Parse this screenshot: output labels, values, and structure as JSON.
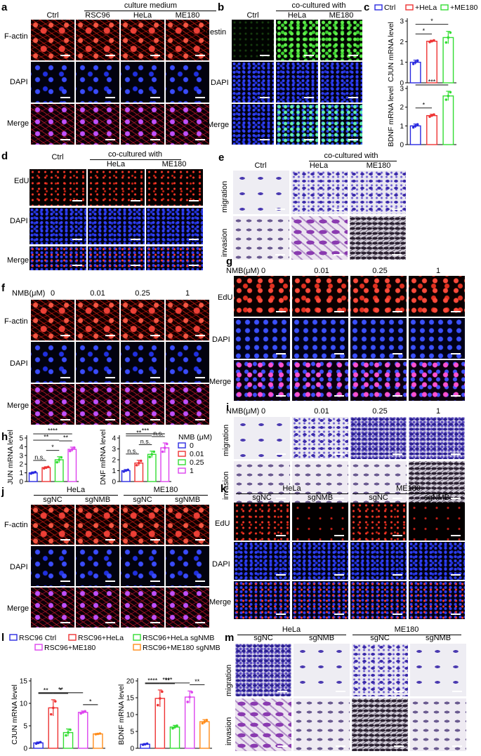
{
  "panels": {
    "a": "a",
    "b": "b",
    "c": "c",
    "d": "d",
    "e": "e",
    "f": "f",
    "g": "g",
    "h": "h",
    "i": "i",
    "j": "j",
    "k": "k",
    "l": "l",
    "m": "m"
  },
  "a": {
    "header": "culture medium",
    "cols": [
      "Ctrl",
      "RSC96",
      "HeLa",
      "ME180"
    ],
    "rows": [
      "F-actin",
      "DAPI",
      "Merge"
    ]
  },
  "b": {
    "header": "co-cultured with",
    "cols": [
      "Ctrl",
      "HeLa",
      "ME180"
    ],
    "rows": [
      "Nestin",
      "DAPI",
      "Merge"
    ]
  },
  "d": {
    "header": "co-cultured with",
    "cols": [
      "Ctrl",
      "HeLa",
      "ME180"
    ],
    "rows": [
      "EdU",
      "DAPI",
      "Merge"
    ]
  },
  "e": {
    "header": "co-cultured with",
    "cols": [
      "Ctrl",
      "HeLa",
      "ME180"
    ],
    "rows": [
      "migration",
      "invasion"
    ]
  },
  "f": {
    "nmb_label": "NMB(μM)",
    "cols": [
      "0",
      "0.01",
      "0.25",
      "1"
    ],
    "rows": [
      "F-actin",
      "DAPI",
      "Merge"
    ]
  },
  "g": {
    "nmb_label": "NMB(μM)",
    "cols": [
      "0",
      "0.01",
      "0.25",
      "1"
    ],
    "rows": [
      "EdU",
      "DAPI",
      "Merge"
    ]
  },
  "i": {
    "nmb_label": "NMB(μM)",
    "cols": [
      "0",
      "0.01",
      "0.25",
      "1"
    ],
    "rows": [
      "migration",
      "invasion"
    ]
  },
  "j": {
    "groups": [
      "HeLa",
      "ME180"
    ],
    "cols": [
      "sgNC",
      "sgNMB",
      "sgNC",
      "sgNMB"
    ],
    "rows": [
      "F-actin",
      "DAPI",
      "Merge"
    ]
  },
  "k": {
    "groups": [
      "HeLa",
      "ME180"
    ],
    "cols": [
      "sgNC",
      "sgNMB",
      "sgNC",
      "sgNMB"
    ],
    "rows": [
      "EdU",
      "DAPI",
      "Merge"
    ]
  },
  "m": {
    "groups": [
      "HeLa",
      "ME180"
    ],
    "cols": [
      "sgNC",
      "sgNMB",
      "sgNC",
      "sgNMB"
    ],
    "rows": [
      "migration",
      "invasion"
    ]
  },
  "colors": {
    "blue": "#2a2ae0",
    "red": "#ee3333",
    "green": "#33dd33",
    "magenta": "#dd44ee",
    "orange": "#ff8c1a"
  },
  "chart_data": [
    {
      "id": "c_cjun",
      "type": "bar",
      "legend": [
        "Ctrl",
        "+HeLa",
        "+ME180"
      ],
      "categories": [
        "Ctrl",
        "+HeLa",
        "+ME180"
      ],
      "values": [
        1.0,
        2.02,
        2.2
      ],
      "errors": [
        0.1,
        0.05,
        0.3
      ],
      "ylabel": "CJUN mRNA level",
      "ylim": [
        0,
        3
      ],
      "yticks": [
        "0",
        "1",
        "2",
        "3"
      ],
      "annotations": [
        {
          "from": 0,
          "to": 1,
          "text": "*"
        },
        {
          "from": 0,
          "to": 2,
          "text": "*"
        }
      ]
    },
    {
      "id": "c_bdnf",
      "type": "bar",
      "categories": [
        "Ctrl",
        "+HeLa",
        "+ME180"
      ],
      "values": [
        1.0,
        1.55,
        2.6
      ],
      "errors": [
        0.1,
        0.07,
        0.25
      ],
      "ylabel": "BDNF mRNA level",
      "ylim": [
        0,
        3
      ],
      "yticks": [
        "0",
        "1",
        "2",
        "3"
      ],
      "annotations": [
        {
          "from": 0,
          "to": 1,
          "text": "*"
        },
        {
          "from": 0,
          "to": 2,
          "text": "***"
        }
      ]
    },
    {
      "id": "h_cjun",
      "type": "bar",
      "categories": [
        "0",
        "0.01",
        "0.25",
        "1"
      ],
      "values": [
        1.0,
        1.6,
        2.5,
        3.7
      ],
      "errors": [
        0.1,
        0.1,
        0.35,
        0.25
      ],
      "ylabel": "CJUN mRNA level",
      "ylim": [
        0,
        5
      ],
      "yticks": [
        "0",
        "1",
        "2",
        "3",
        "4",
        "5"
      ],
      "annotations": [
        {
          "from": 0,
          "to": 1,
          "text": "n.s."
        },
        {
          "from": 1,
          "to": 2,
          "text": "*"
        },
        {
          "from": 2,
          "to": 3,
          "text": "**"
        },
        {
          "from": 0,
          "to": 2,
          "text": "**"
        },
        {
          "from": 0,
          "to": 3,
          "text": "****"
        }
      ]
    },
    {
      "id": "h_bdnf",
      "type": "bar",
      "legend_title": "NMB (μM)",
      "legend": [
        "0",
        "0.01",
        "0.25",
        "1"
      ],
      "categories": [
        "0",
        "0.01",
        "0.25",
        "1"
      ],
      "values": [
        1.0,
        1.7,
        2.5,
        3.1
      ],
      "errors": [
        0.1,
        0.25,
        0.3,
        0.45
      ],
      "ylabel": "BDNF mRNA level",
      "ylim": [
        0,
        4
      ],
      "yticks": [
        "0",
        "1",
        "2",
        "3",
        "4"
      ],
      "annotations": [
        {
          "from": 0,
          "to": 1,
          "text": "n.s."
        },
        {
          "from": 1,
          "to": 2,
          "text": "n.s."
        },
        {
          "from": 2,
          "to": 3,
          "text": "n.s."
        },
        {
          "from": 0,
          "to": 2,
          "text": "**"
        },
        {
          "from": 0,
          "to": 3,
          "text": "***"
        }
      ]
    },
    {
      "id": "l_cjun",
      "type": "bar",
      "legend": [
        "RSC96 Ctrl",
        "RSC96+HeLa",
        "RSC96+HeLa sgNMB",
        "RSC96+ME180",
        "RSC96+ME180 sgNMB"
      ],
      "categories": [
        "RSC96 Ctrl",
        "RSC96+HeLa",
        "RSC96+HeLa sgNMB",
        "RSC96+ME180",
        "RSC96+ME180 sgNMB"
      ],
      "values": [
        1.2,
        9.0,
        3.5,
        8.0,
        3.2
      ],
      "errors": [
        0.2,
        1.8,
        0.8,
        0.3,
        0.1
      ],
      "ylabel": "CJUN mRNA level",
      "ylim": [
        0,
        15
      ],
      "yticks": [
        "0",
        "5",
        "10",
        "15"
      ],
      "annotations": [
        {
          "from": 0,
          "to": 1,
          "text": "**"
        },
        {
          "from": 1,
          "to": 2,
          "text": "*"
        },
        {
          "from": 0,
          "to": 3,
          "text": "**"
        },
        {
          "from": 3,
          "to": 4,
          "text": "*"
        }
      ]
    },
    {
      "id": "l_bdnf",
      "type": "bar",
      "categories": [
        "RSC96 Ctrl",
        "RSC96+HeLa",
        "RSC96+HeLa sgNMB",
        "RSC96+ME180",
        "RSC96+ME180 sgNMB"
      ],
      "values": [
        1.2,
        14.8,
        6.3,
        15.2,
        7.9
      ],
      "errors": [
        0.2,
        2.5,
        0.5,
        1.8,
        0.6
      ],
      "ylabel": "BDNF mRNA level",
      "ylim": [
        0,
        20
      ],
      "yticks": [
        "0",
        "5",
        "10",
        "15",
        "20"
      ],
      "annotations": [
        {
          "from": 0,
          "to": 1,
          "text": "****"
        },
        {
          "from": 1,
          "to": 2,
          "text": "**"
        },
        {
          "from": 0,
          "to": 3,
          "text": "****"
        },
        {
          "from": 3,
          "to": 4,
          "text": "**"
        }
      ]
    }
  ]
}
